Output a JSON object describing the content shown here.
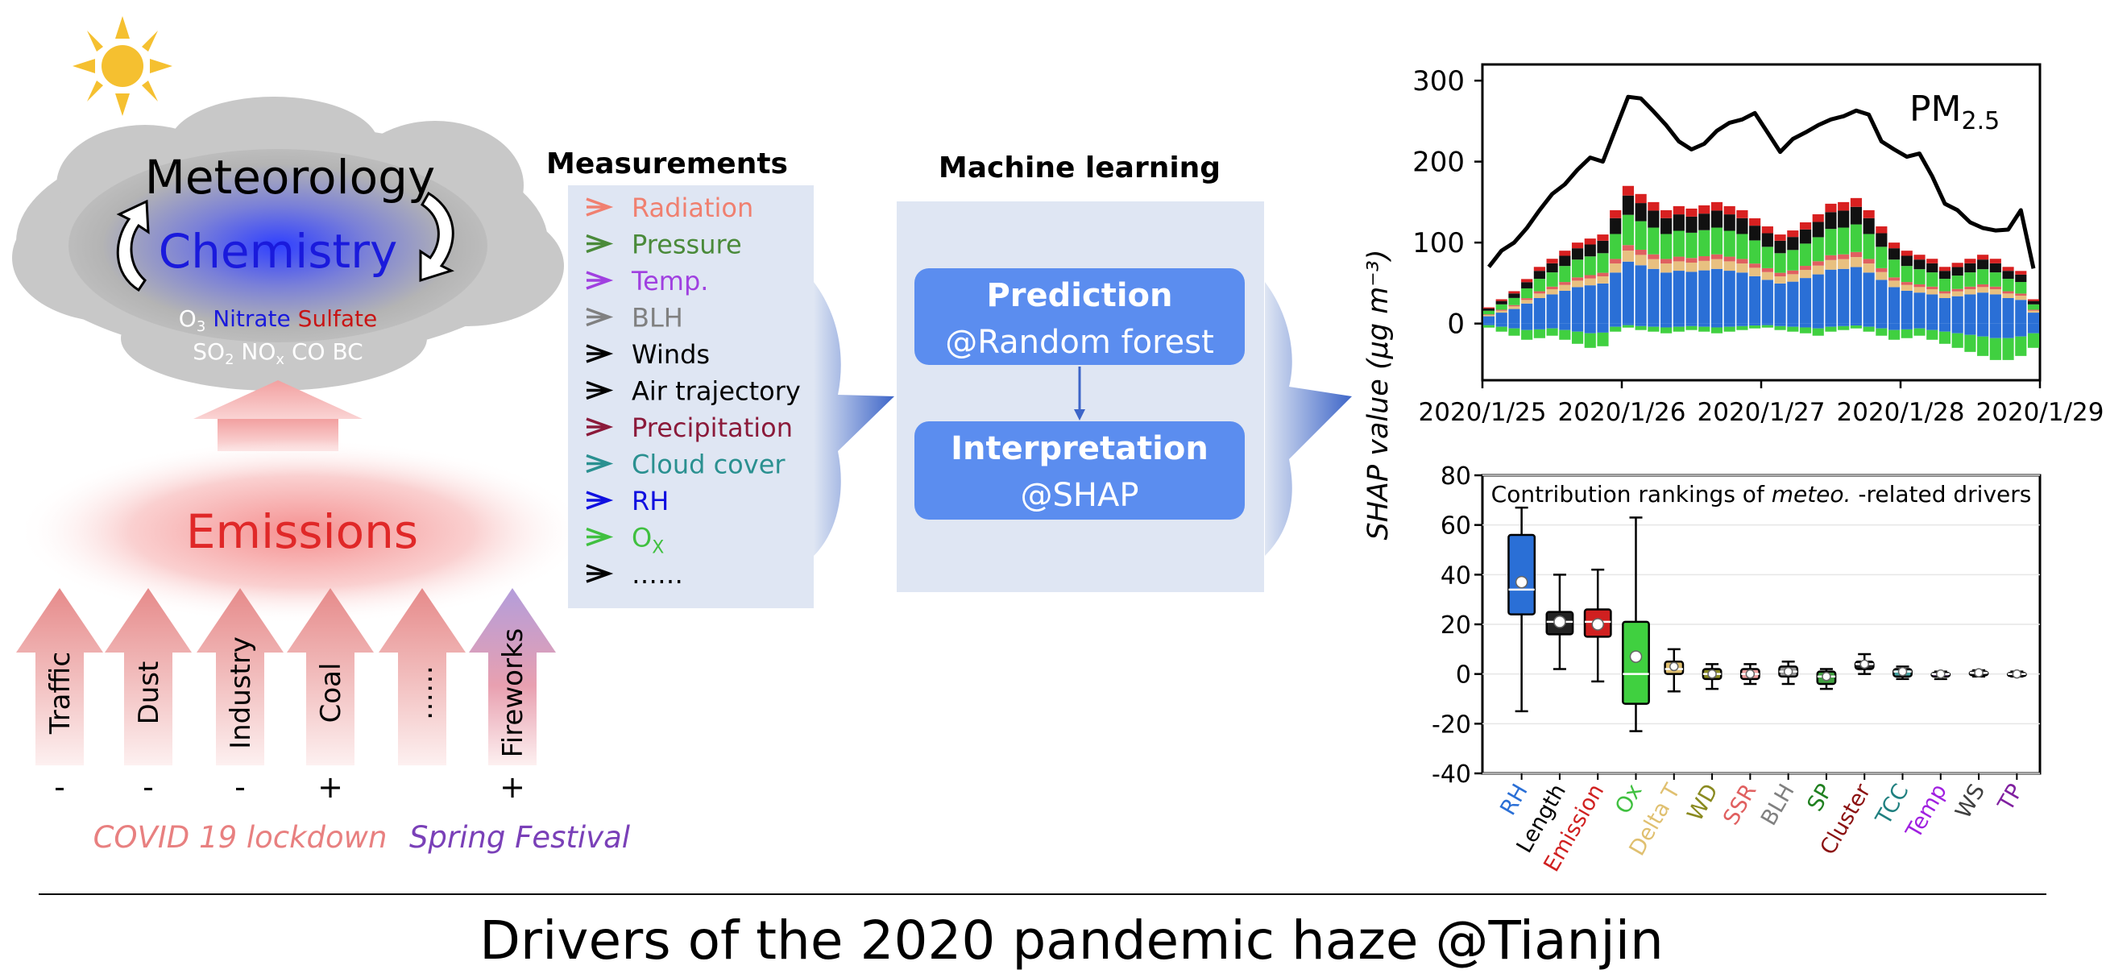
{
  "title": "Drivers of the 2020 pandemic haze @Tianjin",
  "left_panel": {
    "meteorology": "Meteorology",
    "chemistry": "Chemistry",
    "species": {
      "o3_base": "O",
      "o3_sub": "3",
      "nitrate": "Nitrate",
      "sulfate": "Sulfate",
      "so2_base": "SO",
      "so2_sub": "2",
      "nox_base": "NO",
      "nox_sub": "x",
      "co": "CO",
      "bc": "BC"
    },
    "emissions": "Emissions",
    "sources": [
      "Traffic",
      "Dust",
      "Industry",
      "Coal",
      "……",
      "Fireworks"
    ],
    "signs": [
      "-",
      "-",
      "-",
      "+",
      "",
      "+"
    ],
    "covid_label": "COVID 19 lockdown",
    "festival_label": "Spring Festival"
  },
  "measurements": {
    "title": "Measurements",
    "items": [
      {
        "label": "Radiation",
        "color": "#f08070"
      },
      {
        "label": "Pressure",
        "color": "#4a8a3a"
      },
      {
        "label": "Temp.",
        "color": "#a040e0"
      },
      {
        "label": "BLH",
        "color": "#808080"
      },
      {
        "label": "Winds",
        "color": "#000000"
      },
      {
        "label": "Air trajectory",
        "color": "#000000"
      },
      {
        "label": "Precipitation",
        "color": "#8b1a3a"
      },
      {
        "label": "Cloud cover",
        "color": "#2a9090"
      },
      {
        "label": "RH",
        "color": "#1010e0"
      },
      {
        "label": "O",
        "sub": "X",
        "color": "#40c040"
      },
      {
        "label": "……",
        "color": "#000000"
      }
    ]
  },
  "machine_learning": {
    "title": "Machine learning",
    "box1_line1": "Prediction",
    "box1_line2": "@Random forest",
    "box2_line1": "Interpretation",
    "box2_line2": "@SHAP"
  },
  "colors": {
    "ml_box": "#5b8def",
    "panel_bg": "#dfe6f3",
    "arrow_blue": "#3d65c8"
  },
  "chart_data": [
    {
      "type": "line",
      "series_label_base": "PM",
      "series_label_sub": "2.5",
      "ylabel": "SHAP value (μg m⁻³)",
      "ylim": [
        -70,
        320
      ],
      "yticks": [
        0,
        100,
        200,
        300
      ],
      "xticks": [
        "2020/1/25",
        "2020/1/26",
        "2020/1/27",
        "2020/1/28",
        "2020/1/29"
      ],
      "pm25": [
        70,
        90,
        100,
        118,
        140,
        160,
        172,
        190,
        205,
        200,
        240,
        280,
        278,
        262,
        245,
        225,
        215,
        222,
        238,
        248,
        252,
        260,
        236,
        212,
        228,
        236,
        245,
        252,
        256,
        263,
        258,
        225,
        215,
        206,
        210,
        182,
        148,
        140,
        125,
        118,
        115,
        116,
        140,
        68
      ],
      "stack_top": [
        20,
        30,
        40,
        55,
        70,
        80,
        90,
        100,
        105,
        110,
        140,
        170,
        160,
        150,
        140,
        145,
        142,
        146,
        150,
        145,
        140,
        130,
        120,
        110,
        115,
        125,
        135,
        148,
        150,
        155,
        140,
        120,
        100,
        90,
        85,
        80,
        70,
        75,
        80,
        85,
        80,
        70,
        65,
        30
      ],
      "stack_bottom": [
        -5,
        -10,
        -15,
        -20,
        -18,
        -15,
        -20,
        -25,
        -30,
        -28,
        -10,
        -5,
        -8,
        -10,
        -12,
        -10,
        -8,
        -10,
        -12,
        -10,
        -8,
        -6,
        -5,
        -8,
        -10,
        -12,
        -15,
        -10,
        -8,
        -6,
        -10,
        -15,
        -20,
        -18,
        -15,
        -20,
        -25,
        -30,
        -35,
        -40,
        -45,
        -45,
        -40,
        -30
      ]
    },
    {
      "type": "box",
      "title_prefix": "Contribution rankings of ",
      "title_italic": "meteo.",
      "title_suffix": " -related drivers",
      "ylim": [
        -40,
        80
      ],
      "yticks": [
        80,
        60,
        40,
        20,
        0,
        -20,
        -40
      ],
      "categories": [
        "RH",
        "Length",
        "Emission",
        "Ox",
        "Delta T",
        "WD",
        "SSR",
        "BLH",
        "SP",
        "Cluster",
        "TCC",
        "Temp",
        "WS",
        "TP"
      ],
      "category_colors": [
        "#2a6fd6",
        "#000000",
        "#d02020",
        "#40c040",
        "#e0c070",
        "#8a8a20",
        "#e06060",
        "#808080",
        "#208020",
        "#8b1010",
        "#208080",
        "#a020e0",
        "#404040",
        "#8020a0"
      ],
      "box_colors": [
        "#2a6fd6",
        "#222222",
        "#d02020",
        "#40d040",
        "#e0c070",
        "#8a8a20",
        "#f0a0a0",
        "#999999",
        "#40a040",
        "#222222",
        "#40a0a0",
        "#c080f0",
        "#666666",
        "#c080e0"
      ],
      "min": [
        -15,
        2,
        -3,
        -23,
        -7,
        -6,
        -4,
        -4,
        -6,
        0,
        -2,
        -2,
        -1,
        -1
      ],
      "q1": [
        24,
        16,
        15,
        -12,
        0,
        -2,
        -2,
        -1,
        -4,
        2,
        -1,
        -1,
        -0.5,
        -0.5
      ],
      "median": [
        34,
        21,
        21,
        0,
        2,
        0,
        0,
        1,
        -1,
        4,
        1,
        0,
        0.5,
        0
      ],
      "q3": [
        56,
        25,
        26,
        21,
        5,
        2,
        2,
        3,
        1,
        5,
        2,
        0.5,
        1,
        0.5
      ],
      "max": [
        67,
        40,
        42,
        63,
        10,
        4,
        4,
        5,
        2,
        8,
        3,
        1,
        1.5,
        1
      ],
      "mean": [
        37,
        21,
        20,
        7,
        3,
        0,
        0,
        1,
        -1,
        4,
        1,
        0,
        0.5,
        0
      ]
    }
  ]
}
